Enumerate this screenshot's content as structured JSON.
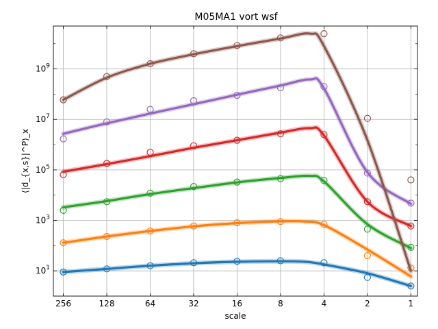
{
  "chart_data": {
    "type": "line",
    "title": "M05MA1 vort wsf",
    "xlabel": "scale",
    "ylabel": "⟨|d_{x,s}|^P⟩_x",
    "x_scale": "log2",
    "x_reversed": true,
    "y_scale": "log10",
    "xlim": [
      300,
      0.9
    ],
    "ylim": [
      1.0,
      50000000000
    ],
    "x_ticks": [
      256,
      128,
      64,
      32,
      16,
      8,
      4,
      2,
      1
    ],
    "x_tick_labels": [
      "256",
      "128",
      "64",
      "32",
      "16",
      "8",
      "4",
      "2",
      "1"
    ],
    "y_major_ticks": [
      10,
      1000,
      100000,
      10000000,
      1000000000
    ],
    "y_tick_labels": [
      {
        "base": "10",
        "exp": "1"
      },
      {
        "base": "10",
        "exp": "3"
      },
      {
        "base": "10",
        "exp": "5"
      },
      {
        "base": "10",
        "exp": "7"
      },
      {
        "base": "10",
        "exp": "9"
      }
    ],
    "grid": true,
    "series": [
      {
        "color": "#1f77b4",
        "markers": [
          [
            256,
            9
          ],
          [
            128,
            12
          ],
          [
            64,
            16
          ],
          [
            32,
            21
          ],
          [
            16,
            24
          ],
          [
            8,
            25
          ],
          [
            4,
            21
          ],
          [
            2,
            5.5
          ],
          [
            1,
            2.5
          ]
        ],
        "curve": [
          [
            256,
            9
          ],
          [
            128,
            12
          ],
          [
            64,
            16
          ],
          [
            32,
            20
          ],
          [
            16,
            23
          ],
          [
            8,
            24
          ],
          [
            5.5,
            23
          ],
          [
            4,
            18
          ],
          [
            2,
            8
          ],
          [
            1,
            2.5
          ]
        ]
      },
      {
        "color": "#ff7f0e",
        "markers": [
          [
            256,
            130
          ],
          [
            128,
            230
          ],
          [
            64,
            380
          ],
          [
            32,
            600
          ],
          [
            16,
            800
          ],
          [
            8,
            900
          ],
          [
            4,
            700
          ],
          [
            2,
            40
          ],
          [
            1,
            13
          ]
        ],
        "curve": [
          [
            256,
            130
          ],
          [
            128,
            230
          ],
          [
            64,
            380
          ],
          [
            32,
            580
          ],
          [
            16,
            780
          ],
          [
            8,
            920
          ],
          [
            5.5,
            900
          ],
          [
            4,
            650
          ],
          [
            2,
            70
          ],
          [
            1,
            6
          ]
        ]
      },
      {
        "color": "#2ca02c",
        "markers": [
          [
            256,
            2500
          ],
          [
            128,
            5500
          ],
          [
            64,
            12000
          ],
          [
            32,
            22000
          ],
          [
            16,
            33000
          ],
          [
            8,
            45000
          ],
          [
            4,
            38000
          ],
          [
            2,
            450
          ],
          [
            1,
            85
          ]
        ],
        "curve": [
          [
            256,
            3300
          ],
          [
            128,
            5800
          ],
          [
            64,
            11000
          ],
          [
            32,
            19000
          ],
          [
            16,
            32000
          ],
          [
            8,
            48000
          ],
          [
            5,
            58000
          ],
          [
            4,
            35000
          ],
          [
            2,
            700
          ],
          [
            1,
            80
          ]
        ]
      },
      {
        "color": "#d62728",
        "markers": [
          [
            256,
            65000
          ],
          [
            128,
            180000
          ],
          [
            64,
            500000
          ],
          [
            32,
            900000
          ],
          [
            16,
            1500000
          ],
          [
            8,
            2700000
          ],
          [
            4,
            2500000
          ],
          [
            2,
            5500
          ],
          [
            1,
            600
          ]
        ],
        "curve": [
          [
            256,
            85000
          ],
          [
            128,
            170000
          ],
          [
            64,
            350000
          ],
          [
            32,
            750000
          ],
          [
            16,
            1500000
          ],
          [
            8,
            3000000
          ],
          [
            5,
            4500000
          ],
          [
            4,
            2300000
          ],
          [
            2,
            5500
          ],
          [
            1,
            600
          ]
        ]
      },
      {
        "color": "#9467bd",
        "markers": [
          [
            256,
            1700000
          ],
          [
            128,
            8000000
          ],
          [
            64,
            25000000
          ],
          [
            32,
            55000000
          ],
          [
            16,
            90000000
          ],
          [
            8,
            180000000
          ],
          [
            4,
            200000000
          ],
          [
            2,
            75000
          ],
          [
            1,
            4800
          ]
        ],
        "curve": [
          [
            256,
            2700000
          ],
          [
            128,
            7000000
          ],
          [
            64,
            17000000
          ],
          [
            32,
            40000000
          ],
          [
            16,
            95000000
          ],
          [
            8,
            220000000
          ],
          [
            5,
            380000000
          ],
          [
            4,
            170000000
          ],
          [
            2,
            80000
          ],
          [
            1,
            4500
          ]
        ]
      },
      {
        "color": "#8c564b",
        "markers": [
          [
            256,
            60000000
          ],
          [
            128,
            500000000
          ],
          [
            64,
            1600000000
          ],
          [
            32,
            4000000000
          ],
          [
            16,
            8500000000
          ],
          [
            8,
            17000000000
          ],
          [
            4,
            25000000000
          ],
          [
            2,
            11000000
          ],
          [
            1,
            40000
          ]
        ],
        "curve": [
          [
            256,
            60000000
          ],
          [
            128,
            450000000
          ],
          [
            64,
            1600000000
          ],
          [
            32,
            3800000000
          ],
          [
            16,
            8000000000
          ],
          [
            8,
            16000000000
          ],
          [
            5,
            25000000000
          ],
          [
            4,
            8000000000
          ],
          [
            2,
            1500000
          ],
          [
            1,
            10
          ]
        ]
      }
    ]
  }
}
